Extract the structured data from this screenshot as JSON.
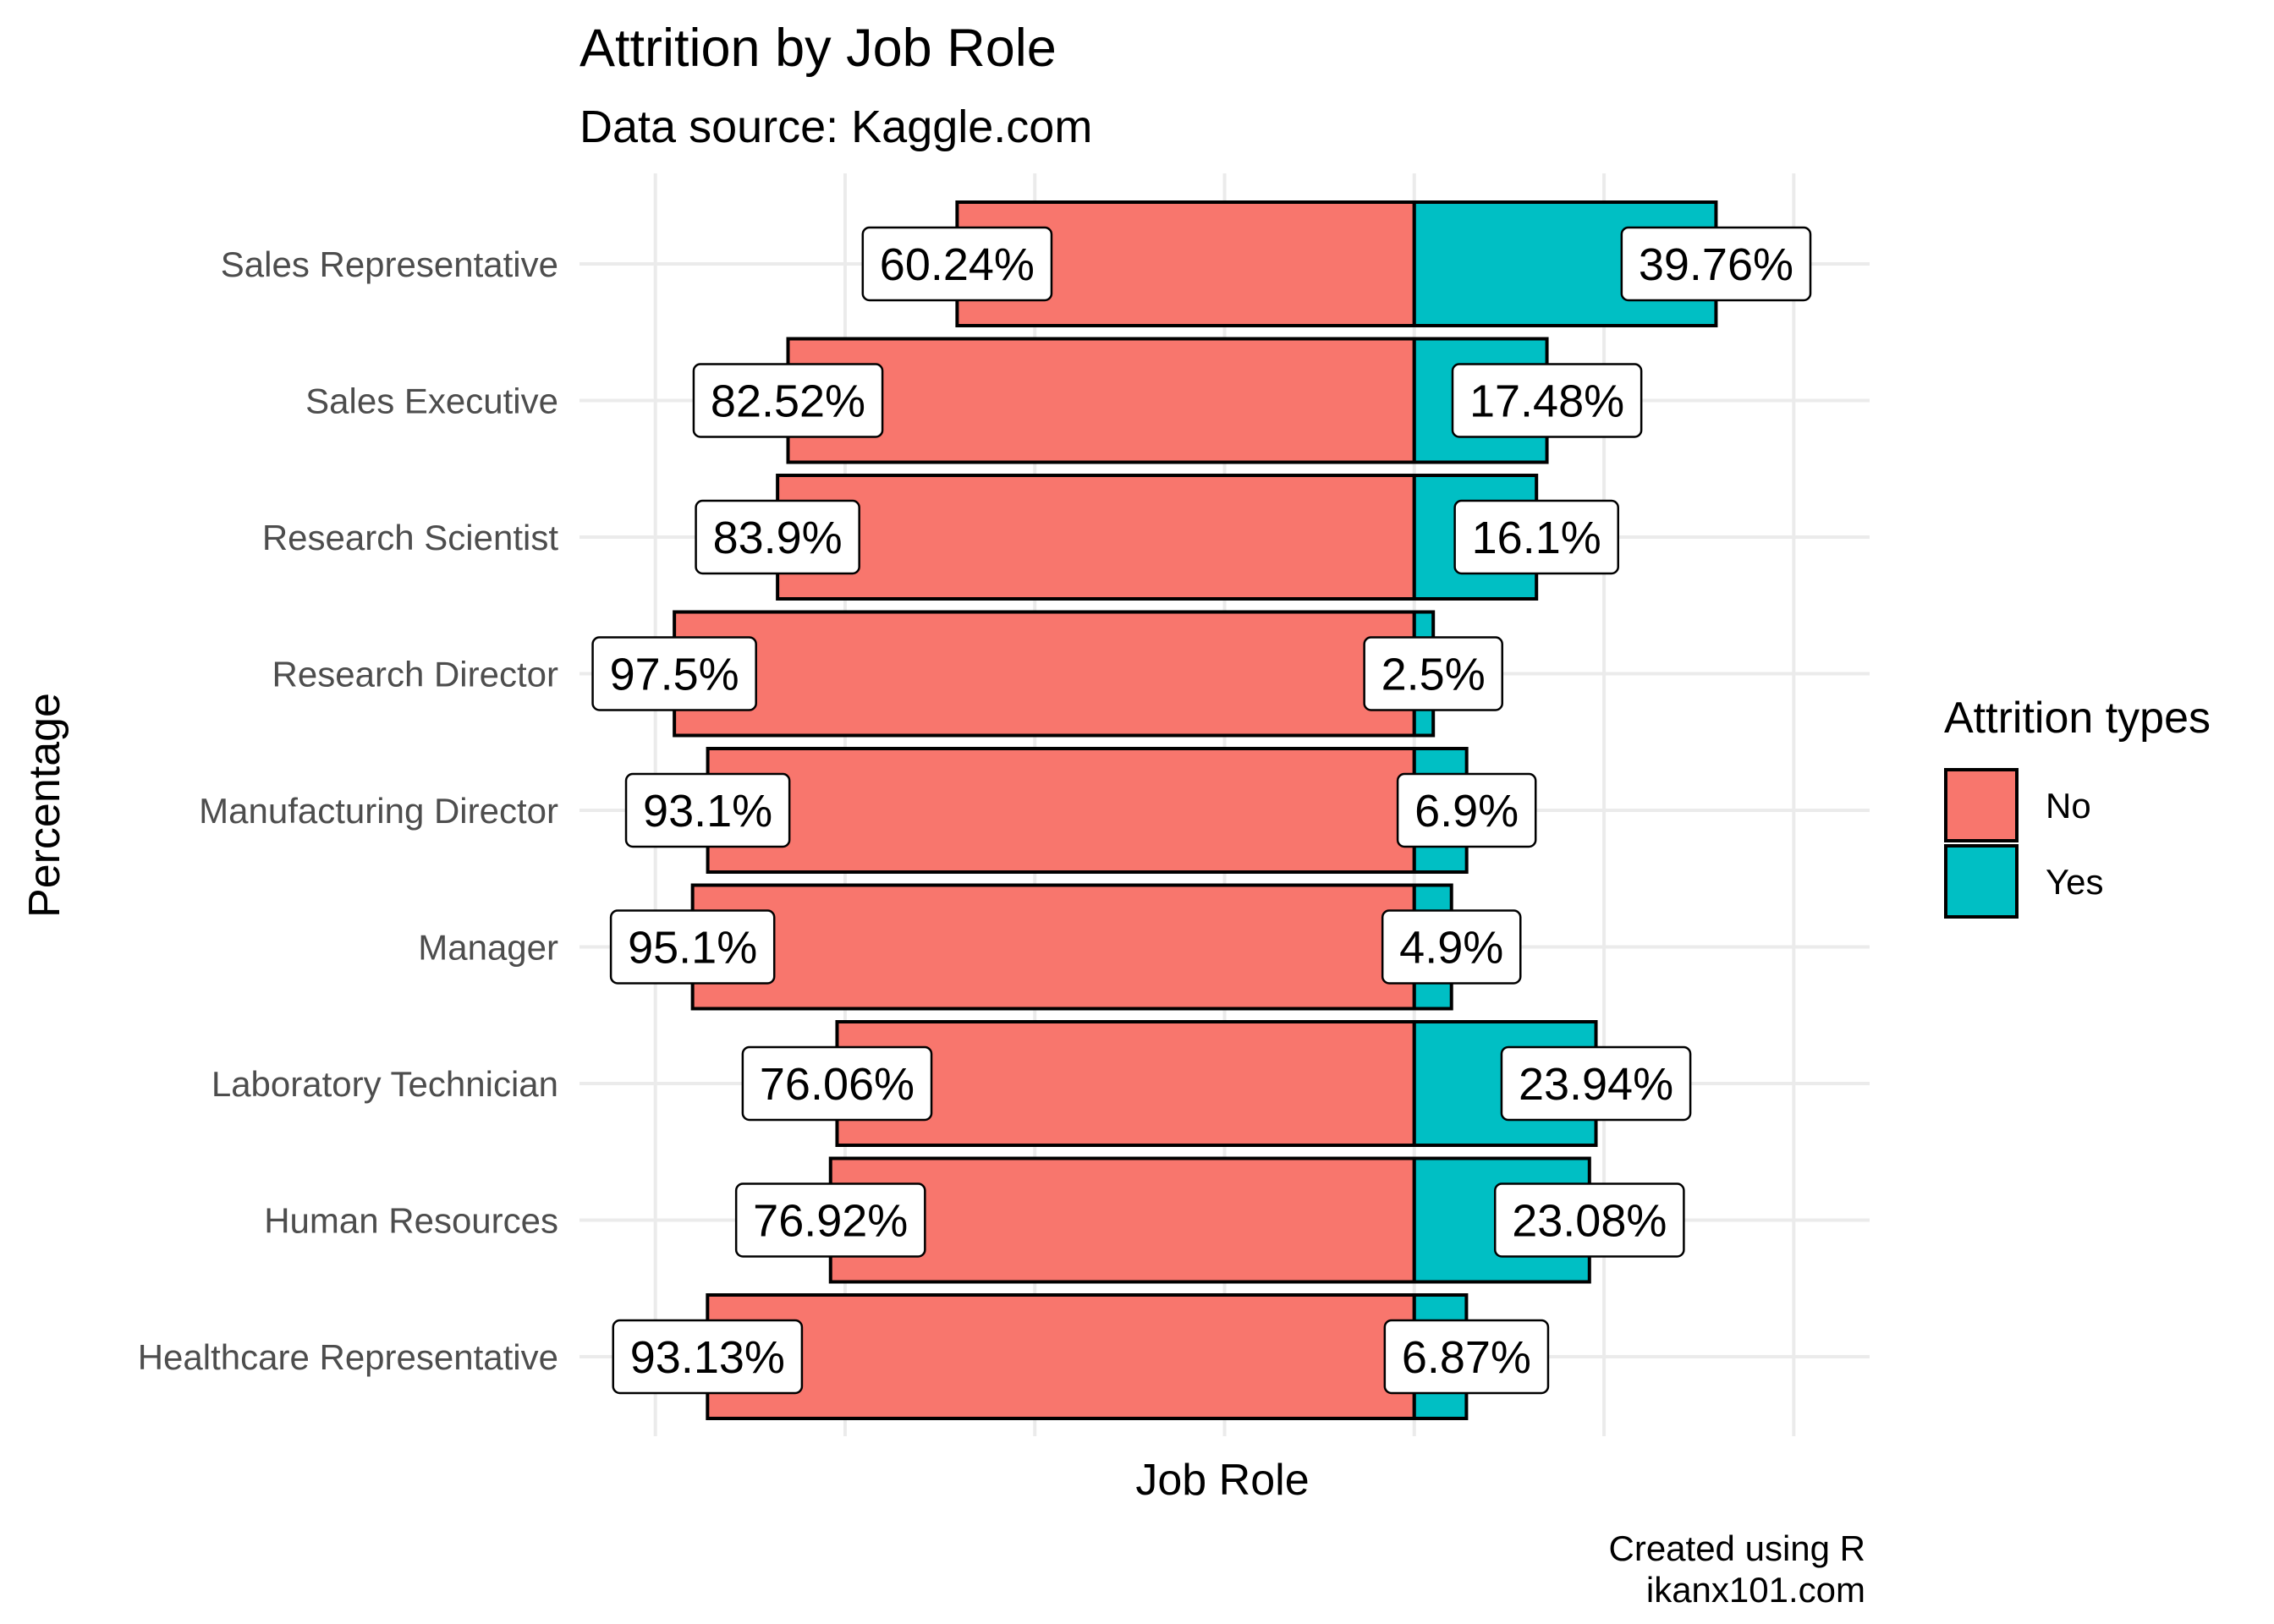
{
  "chart_data": {
    "type": "bar",
    "orientation": "horizontal-diverging",
    "title": "Attrition by Job Role",
    "subtitle": "Data source: Kaggle.com",
    "xlabel": "Job Role",
    "ylabel": "Percentage",
    "caption_lines": [
      "Created using R",
      "ikanx101.com"
    ],
    "categories": [
      "Sales Representative",
      "Sales Executive",
      "Research Scientist",
      "Research Director",
      "Manufacturing Director",
      "Manager",
      "Laboratory Technician",
      "Human Resources",
      "Healthcare Representative"
    ],
    "series": [
      {
        "name": "No",
        "color": "#F8766D",
        "values": [
          60.24,
          82.52,
          83.9,
          97.5,
          93.1,
          95.1,
          76.06,
          76.92,
          93.13
        ],
        "labels": [
          "60.24%",
          "82.52%",
          "83.9%",
          "97.5%",
          "93.1%",
          "95.1%",
          "76.06%",
          "76.92%",
          "93.13%"
        ]
      },
      {
        "name": "Yes",
        "color": "#00BFC4",
        "values": [
          39.76,
          17.48,
          16.1,
          2.5,
          6.9,
          4.9,
          23.94,
          23.08,
          6.87
        ],
        "labels": [
          "39.76%",
          "17.48%",
          "16.1%",
          "2.5%",
          "6.9%",
          "4.9%",
          "23.94%",
          "23.08%",
          "6.87%"
        ]
      }
    ],
    "value_axis_range": [
      -110,
      60
    ],
    "grid": true,
    "legend": {
      "title": "Attrition types",
      "position": "right",
      "entries": [
        "No",
        "Yes"
      ]
    }
  }
}
